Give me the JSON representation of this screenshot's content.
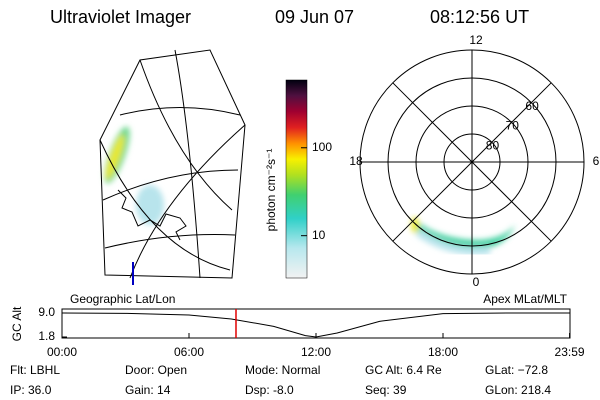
{
  "header": {
    "title": "Ultraviolet Imager",
    "date": "09 Jun 07",
    "time": "08:12:56 UT"
  },
  "colorbar": {
    "label": "photon cm⁻²s⁻¹",
    "log": true,
    "lim": [
      3.3,
      590
    ],
    "ticks": [
      100,
      10
    ]
  },
  "polar_plot": {
    "mlt_ticks": [
      12,
      18,
      6,
      0
    ],
    "lat_ticks": [
      80,
      70,
      60
    ],
    "rlim": [
      90,
      50
    ]
  },
  "timeline": {
    "left_label": "Geographic Lat/Lon",
    "right_label": "Apex MLat/MLT",
    "y_axis_label": "GC Alt",
    "xlim": [
      0,
      24
    ],
    "ylim": [
      1.8,
      9.0
    ],
    "yticks": [
      {
        "value": 9.0,
        "label": "9.0"
      },
      1.8
    ],
    "xticks": [
      {
        "value": 0,
        "label": "00:00"
      },
      {
        "value": 6,
        "label": "06:00"
      },
      {
        "value": 12,
        "label": "12:00"
      },
      {
        "value": 18,
        "label": "18:00"
      },
      {
        "value": 23.98,
        "label": "23:59"
      }
    ],
    "hours": [
      0,
      3,
      6,
      8,
      10,
      11.5,
      12,
      13,
      15,
      18,
      21,
      24
    ],
    "altitude": [
      9.0,
      8.9,
      8.4,
      7.2,
      5.0,
      2.2,
      1.8,
      3.0,
      6.5,
      8.8,
      9.0,
      9.0
    ],
    "marker_hour": 8.22
  },
  "footer": {
    "rows": [
      [
        "Flt: LBHL",
        "Door: Open",
        "Mode: Normal",
        "GC Alt: 6.4 Re",
        "GLat: −72.8"
      ],
      [
        "IP: 36.0",
        "Gain: 14",
        "Dsp:   -8.0",
        "Seq: 39",
        "GLon: 218.4"
      ]
    ]
  }
}
